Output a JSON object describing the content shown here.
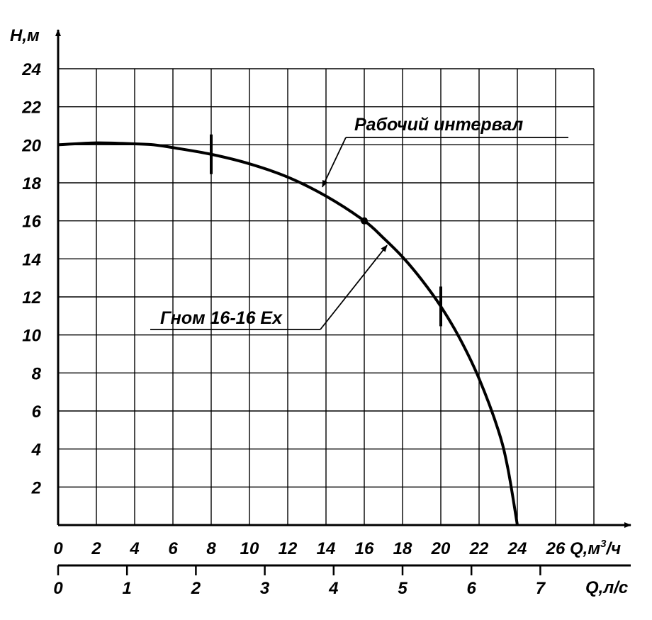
{
  "chart_data": {
    "type": "line",
    "x_axis": {
      "label_parts": [
        "Q,м",
        "3",
        "/ч"
      ],
      "min": 0,
      "max": 28,
      "ticks": [
        0,
        2,
        4,
        6,
        8,
        10,
        12,
        14,
        16,
        18,
        20,
        22,
        24,
        26
      ]
    },
    "x_axis_secondary": {
      "label": "Q,л/с",
      "ticks": [
        0,
        1,
        2,
        3,
        4,
        5,
        6,
        7
      ],
      "per_m3h": 0.2777778
    },
    "y_axis": {
      "label": "Н,м",
      "min": 0,
      "max": 24,
      "ticks": [
        2,
        4,
        6,
        8,
        10,
        12,
        14,
        16,
        18,
        20,
        22,
        24
      ]
    },
    "grid": true,
    "series": [
      {
        "name": "Гном 16-16 Ex",
        "x": [
          0,
          2,
          4,
          5,
          6,
          8,
          10,
          12,
          14,
          16,
          17,
          18,
          19,
          20,
          21,
          22,
          23,
          23.5,
          24
        ],
        "y": [
          20.0,
          20.1,
          20.05,
          20.0,
          19.85,
          19.5,
          19.0,
          18.3,
          17.3,
          16.0,
          15.1,
          14.1,
          12.9,
          11.5,
          9.8,
          7.7,
          5.0,
          3.0,
          0.0
        ]
      }
    ],
    "operating_range_markers": [
      8,
      20
    ],
    "nominal_point": {
      "x": 16,
      "y": 16
    },
    "annotations": [
      {
        "text": "Рабочий интервал",
        "points_to": {
          "x": 13.7,
          "y": 17.6
        }
      },
      {
        "text": "Гном 16-16 Ex",
        "points_to": {
          "x": 17.3,
          "y": 14.9
        }
      }
    ]
  }
}
